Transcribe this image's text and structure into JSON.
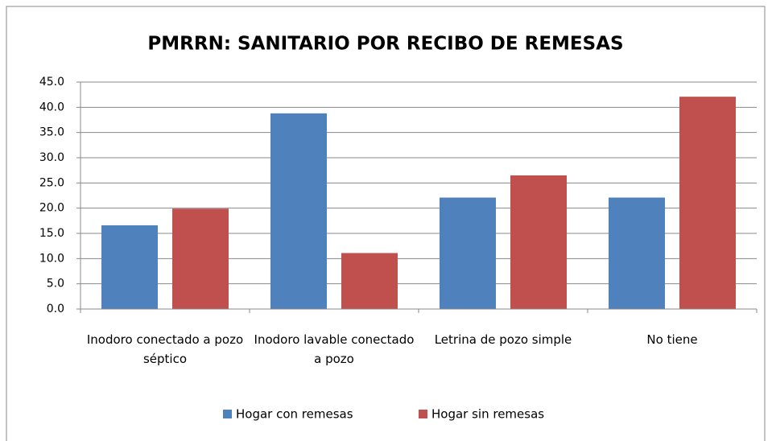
{
  "chart_data": {
    "type": "bar",
    "title": "PMRRN: SANITARIO POR RECIBO DE REMESAS",
    "categories": [
      "Inodoro conectado a pozo séptico",
      "Inodoro lavable conectado a pozo",
      "Letrina de pozo simple",
      "No tiene"
    ],
    "series": [
      {
        "name": "Hogar con remesas",
        "color": "#4f81bd",
        "values": [
          16.6,
          38.8,
          22.1,
          22.1
        ]
      },
      {
        "name": "Hogar sin remesas",
        "color": "#c0504d",
        "values": [
          19.9,
          11.1,
          26.5,
          42.1
        ]
      }
    ],
    "ylim": [
      0,
      45
    ],
    "yticks": [
      {
        "value": 0,
        "label": "0.0"
      },
      {
        "value": 5,
        "label": "5.0"
      },
      {
        "value": 10,
        "label": "10.0"
      },
      {
        "value": 15,
        "label": "15.0"
      },
      {
        "value": 20,
        "label": "20.0"
      },
      {
        "value": 25,
        "label": "25.0"
      },
      {
        "value": 30,
        "label": "30.0"
      },
      {
        "value": 35,
        "label": "35.0"
      },
      {
        "value": 40,
        "label": "40.0"
      },
      {
        "value": 45,
        "label": "45.0"
      }
    ],
    "grid": true,
    "legend": "bottom"
  }
}
